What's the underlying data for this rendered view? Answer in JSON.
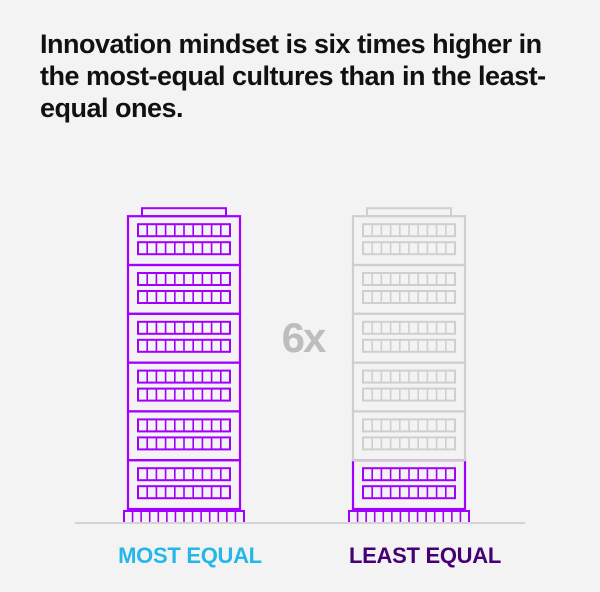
{
  "title": "Innovation mindset is six times higher in the most-equal cultures than in the least-equal ones.",
  "colors": {
    "purple": "#a100ff",
    "dark_purple": "#460073",
    "cyan": "#25b7e8",
    "outline_gray": "#cfcfcf",
    "ratio_gray": "#bdbdbd",
    "baseline": "#d4d4d4",
    "background": "#f3f3f3"
  },
  "chart_data": {
    "type": "pictogram",
    "title": "Innovation mindset is six times higher in the most-equal cultures than in the least-equal ones.",
    "unit": "building floors",
    "ratio_label": "6x",
    "categories": [
      "MOST EQUAL",
      "LEAST EQUAL"
    ],
    "values": [
      6,
      1
    ],
    "max_floors": 6,
    "category_colors": [
      "#25b7e8",
      "#460073"
    ]
  }
}
